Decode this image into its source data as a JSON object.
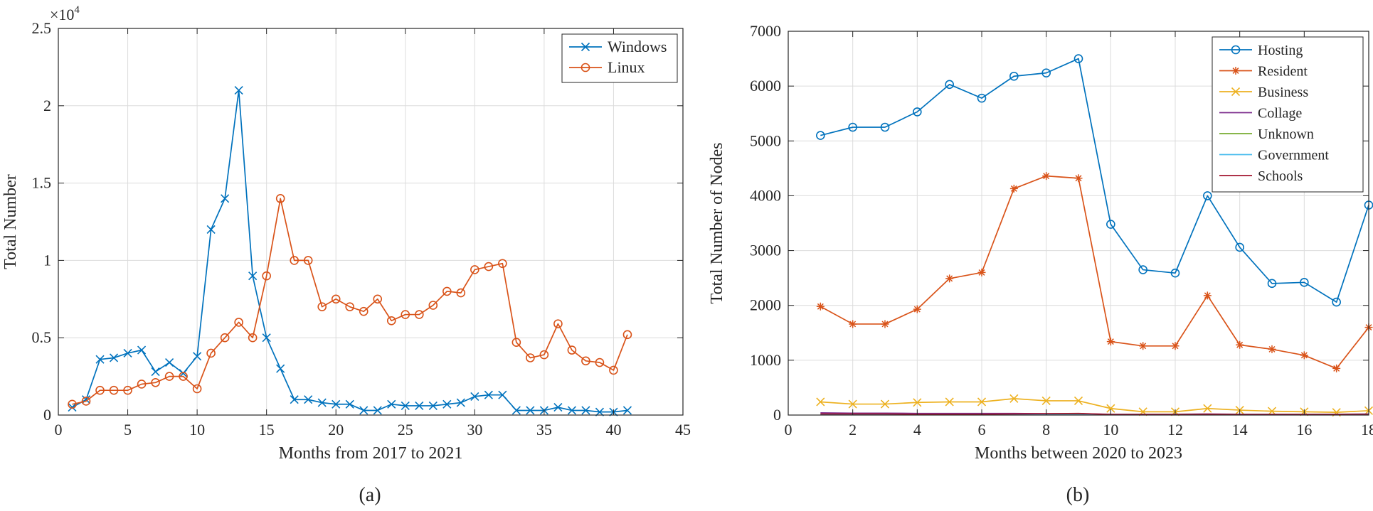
{
  "chart_data": [
    {
      "id": "a",
      "type": "line",
      "panel_label": "(a)",
      "title": "",
      "xlabel": "Months from 2017 to 2021",
      "ylabel": "Total Number",
      "exponent_label": "×10",
      "exponent_power": "4",
      "xlim": [
        0,
        45
      ],
      "ylim": [
        0,
        25000
      ],
      "xticks": [
        0,
        5,
        10,
        15,
        20,
        25,
        30,
        35,
        40,
        45
      ],
      "yticks": [
        0,
        5000,
        10000,
        15000,
        20000,
        25000
      ],
      "ytick_labels": [
        "0",
        "0.5",
        "1",
        "1.5",
        "2",
        "2.5"
      ],
      "grid": true,
      "legend_position": "top-right",
      "series": [
        {
          "name": "Windows",
          "color": "#0072BD",
          "marker": "x",
          "x": [
            1,
            2,
            3,
            4,
            5,
            6,
            7,
            8,
            9,
            10,
            11,
            12,
            13,
            14,
            15,
            16,
            17,
            18,
            19,
            20,
            21,
            22,
            23,
            24,
            25,
            26,
            27,
            28,
            29,
            30,
            31,
            32,
            33,
            34,
            35,
            36,
            37,
            38,
            39,
            40,
            41
          ],
          "values": [
            500,
            1000,
            3600,
            3700,
            4000,
            4200,
            2800,
            3400,
            2700,
            3800,
            12000,
            14000,
            21000,
            9000,
            5000,
            3000,
            1000,
            1000,
            800,
            700,
            700,
            300,
            300,
            700,
            600,
            600,
            600,
            700,
            800,
            1200,
            1300,
            1300,
            300,
            300,
            300,
            500,
            300,
            300,
            200,
            200,
            300
          ]
        },
        {
          "name": "Linux",
          "color": "#D95319",
          "marker": "o",
          "x": [
            1,
            2,
            3,
            4,
            5,
            6,
            7,
            8,
            9,
            10,
            11,
            12,
            13,
            14,
            15,
            16,
            17,
            18,
            19,
            20,
            21,
            22,
            23,
            24,
            25,
            26,
            27,
            28,
            29,
            30,
            31,
            32,
            33,
            34,
            35,
            36,
            37,
            38,
            39,
            40,
            41
          ],
          "values": [
            700,
            900,
            1600,
            1600,
            1600,
            2000,
            2100,
            2500,
            2500,
            1700,
            4000,
            5000,
            6000,
            5000,
            9000,
            14000,
            10000,
            10000,
            7000,
            7500,
            7000,
            6700,
            7500,
            6100,
            6500,
            6500,
            7100,
            8000,
            7900,
            9400,
            9600,
            9800,
            4700,
            3700,
            3900,
            5900,
            4200,
            3500,
            3400,
            2900,
            5200
          ]
        }
      ]
    },
    {
      "id": "b",
      "type": "line",
      "panel_label": "(b)",
      "title": "",
      "xlabel": "Months between 2020 to 2023",
      "ylabel": "Total Number of Nodes",
      "xlim": [
        0,
        18
      ],
      "ylim": [
        0,
        7000
      ],
      "xticks": [
        0,
        2,
        4,
        6,
        8,
        10,
        12,
        14,
        16,
        18
      ],
      "yticks": [
        0,
        1000,
        2000,
        3000,
        4000,
        5000,
        6000,
        7000
      ],
      "ytick_labels": [
        "0",
        "1000",
        "2000",
        "3000",
        "4000",
        "5000",
        "6000",
        "7000"
      ],
      "grid": true,
      "legend_position": "top-right",
      "series": [
        {
          "name": "Hosting",
          "color": "#0072BD",
          "marker": "o",
          "x": [
            1,
            2,
            3,
            4,
            5,
            6,
            7,
            8,
            9,
            10,
            11,
            12,
            13,
            14,
            15,
            16,
            17,
            18
          ],
          "values": [
            5100,
            5250,
            5250,
            5530,
            6030,
            5780,
            6180,
            6240,
            6500,
            3480,
            2650,
            2590,
            4000,
            3060,
            2400,
            2420,
            2060,
            3830
          ]
        },
        {
          "name": "Resident",
          "color": "#D95319",
          "marker": "*",
          "x": [
            1,
            2,
            3,
            4,
            5,
            6,
            7,
            8,
            9,
            10,
            11,
            12,
            13,
            14,
            15,
            16,
            17,
            18
          ],
          "values": [
            1980,
            1660,
            1660,
            1930,
            2490,
            2600,
            4130,
            4360,
            4320,
            1340,
            1260,
            1260,
            2180,
            1280,
            1200,
            1090,
            850,
            1600
          ]
        },
        {
          "name": "Business",
          "color": "#EDB120",
          "marker": "x",
          "x": [
            1,
            2,
            3,
            4,
            5,
            6,
            7,
            8,
            9,
            10,
            11,
            12,
            13,
            14,
            15,
            16,
            17,
            18
          ],
          "values": [
            240,
            200,
            200,
            230,
            240,
            240,
            300,
            260,
            260,
            120,
            60,
            60,
            120,
            90,
            70,
            60,
            50,
            80
          ]
        },
        {
          "name": "Collage",
          "color": "#7E2F8E",
          "marker": "none",
          "x": [
            1,
            2,
            3,
            4,
            5,
            6,
            7,
            8,
            9,
            10,
            11,
            12,
            13,
            14,
            15,
            16,
            17,
            18
          ],
          "values": [
            40,
            35,
            35,
            30,
            30,
            30,
            30,
            25,
            25,
            15,
            15,
            15,
            20,
            15,
            15,
            15,
            15,
            20
          ]
        },
        {
          "name": "Unknown",
          "color": "#77AC30",
          "marker": "none",
          "x": [
            1,
            2,
            3,
            4,
            5,
            6,
            7,
            8,
            9,
            10,
            11,
            12,
            13,
            14,
            15,
            16,
            17,
            18
          ],
          "values": [
            15,
            15,
            15,
            15,
            15,
            15,
            15,
            15,
            15,
            10,
            10,
            10,
            10,
            10,
            10,
            10,
            10,
            10
          ]
        },
        {
          "name": "Government",
          "color": "#4DBEEE",
          "marker": "none",
          "x": [
            1,
            2,
            3,
            4,
            5,
            6,
            7,
            8,
            9,
            10,
            11,
            12,
            13,
            14,
            15,
            16,
            17,
            18
          ],
          "values": [
            5,
            5,
            5,
            5,
            5,
            5,
            5,
            5,
            5,
            5,
            5,
            5,
            5,
            5,
            5,
            5,
            5,
            5
          ]
        },
        {
          "name": "Schools",
          "color": "#A2142F",
          "marker": "none",
          "x": [
            1,
            2,
            3,
            4,
            5,
            6,
            7,
            8,
            9,
            10,
            11,
            12,
            13,
            14,
            15,
            16,
            17,
            18
          ],
          "values": [
            20,
            20,
            20,
            15,
            15,
            15,
            20,
            25,
            30,
            10,
            10,
            10,
            15,
            10,
            10,
            10,
            10,
            10
          ]
        }
      ]
    }
  ]
}
